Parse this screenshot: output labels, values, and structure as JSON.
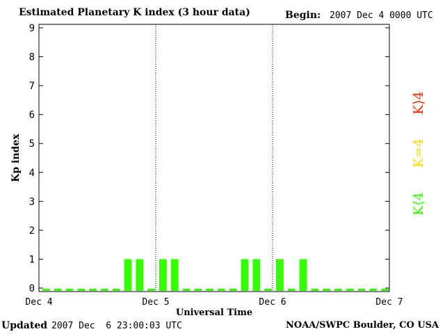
{
  "header": {
    "title": "Estimated Planetary K index (3 hour data)",
    "begin_label": "Begin:",
    "begin_value": "2007 Dec 4 0000 UTC"
  },
  "footer": {
    "updated_label": "Updated",
    "updated_value": "2007 Dec  6 23:00:03 UTC",
    "source": "NOAA/SWPC Boulder, CO USA"
  },
  "legend": {
    "gt4": {
      "text": "K⟩4",
      "color": "#ff2a00"
    },
    "eq4": {
      "text": "K=4",
      "color": "#ffd800"
    },
    "lt4": {
      "text": "K⟨4",
      "color": "#33ff00"
    }
  },
  "chart_data": {
    "type": "bar",
    "title": "Estimated Planetary K index (3 hour data)",
    "xlabel": "Universal Time",
    "ylabel": "Kp index",
    "ylim": [
      0,
      9
    ],
    "yticks": [
      "0",
      "1",
      "2",
      "3",
      "4",
      "5",
      "6",
      "7",
      "8",
      "9"
    ],
    "xticks": [
      "Dec 4",
      "Dec 5",
      "Dec 6",
      "Dec 7"
    ],
    "interval_hours": 3,
    "series": [
      {
        "values": [
          0,
          0,
          0,
          0,
          0,
          0,
          0,
          1,
          1,
          0,
          1,
          1,
          0,
          0,
          0,
          0,
          0,
          1,
          1,
          0,
          1,
          0,
          1,
          0,
          0,
          0,
          0,
          0,
          0,
          0
        ],
        "color": "#33ff00"
      }
    ],
    "grid": "vertical dotted lines at day boundaries"
  }
}
